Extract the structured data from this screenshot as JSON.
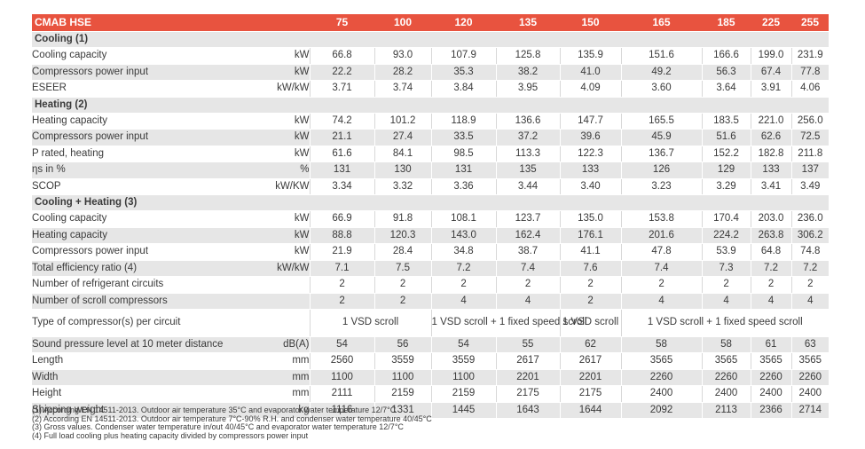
{
  "table": {
    "title": "CMAB HSE",
    "models": [
      "75",
      "100",
      "120",
      "135",
      "150",
      "165",
      "185",
      "225",
      "255"
    ],
    "sections": {
      "cooling": "Cooling (1)",
      "heating": "Heating (2)",
      "combined": "Cooling + Heating (3)"
    },
    "cooling_rows": [
      {
        "label": "Cooling capacity",
        "unit": "kW",
        "values": [
          "66.8",
          "93.0",
          "107.9",
          "125.8",
          "135.9",
          "151.6",
          "166.6",
          "199.0",
          "231.9"
        ]
      },
      {
        "label": "Compressors power input",
        "unit": "kW",
        "values": [
          "22.2",
          "28.2",
          "35.3",
          "38.2",
          "41.0",
          "49.2",
          "56.3",
          "67.4",
          "77.8"
        ]
      },
      {
        "label": "ESEER",
        "unit": "kW/kW",
        "values": [
          "3.71",
          "3.74",
          "3.84",
          "3.95",
          "4.09",
          "3.60",
          "3.64",
          "3.91",
          "4.06"
        ]
      }
    ],
    "heating_rows": [
      {
        "label": "Heating capacity",
        "unit": "kW",
        "values": [
          "74.2",
          "101.2",
          "118.9",
          "136.6",
          "147.7",
          "165.5",
          "183.5",
          "221.0",
          "256.0"
        ]
      },
      {
        "label": "Compressors power input",
        "unit": "kW",
        "values": [
          "21.1",
          "27.4",
          "33.5",
          "37.2",
          "39.6",
          "45.9",
          "51.6",
          "62.6",
          "72.5"
        ]
      },
      {
        "label": "P rated, heating",
        "unit": "kW",
        "values": [
          "61.6",
          "84.1",
          "98.5",
          "113.3",
          "122.3",
          "136.7",
          "152.2",
          "182.8",
          "211.8"
        ]
      },
      {
        "label": "ηs in %",
        "unit": "%",
        "values": [
          "131",
          "130",
          "131",
          "135",
          "133",
          "126",
          "129",
          "133",
          "137"
        ]
      },
      {
        "label": "SCOP",
        "unit": "kW/KW",
        "values": [
          "3.34",
          "3.32",
          "3.36",
          "3.44",
          "3.40",
          "3.23",
          "3.29",
          "3.41",
          "3.49"
        ]
      }
    ],
    "combined_rows": [
      {
        "label": "Cooling capacity",
        "unit": "kW",
        "values": [
          "66.9",
          "91.8",
          "108.1",
          "123.7",
          "135.0",
          "153.8",
          "170.4",
          "203.0",
          "236.0"
        ]
      },
      {
        "label": "Heating capacity",
        "unit": "kW",
        "values": [
          "88.8",
          "120.3",
          "143.0",
          "162.4",
          "176.1",
          "201.6",
          "224.2",
          "263.8",
          "306.2"
        ]
      },
      {
        "label": "Compressors power input",
        "unit": "kW",
        "values": [
          "21.9",
          "28.4",
          "34.8",
          "38.7",
          "41.1",
          "47.8",
          "53.9",
          "64.8",
          "74.8"
        ]
      },
      {
        "label": "Total efficiency ratio (4)",
        "unit": "kW/kW",
        "values": [
          "7.1",
          "7.5",
          "7.2",
          "7.4",
          "7.6",
          "7.4",
          "7.3",
          "7.2",
          "7.2"
        ]
      },
      {
        "label": "Number of refrigerant circuits",
        "unit": "",
        "values": [
          "2",
          "2",
          "2",
          "2",
          "2",
          "2",
          "2",
          "2",
          "2"
        ]
      },
      {
        "label": "Number of scroll compressors",
        "unit": "",
        "values": [
          "2",
          "2",
          "4",
          "4",
          "2",
          "4",
          "4",
          "4",
          "4"
        ]
      }
    ],
    "compressor_type": {
      "label": "Type of compressor(s) per circuit",
      "group1": "1 VSD scroll",
      "group2": "1 VSD scroll + 1 fixed speed scroll",
      "group3": "1 VSD scroll",
      "group4": "1 VSD scroll + 1 fixed speed scroll"
    },
    "physical_rows": [
      {
        "label": "Sound pressure level at 10 meter distance",
        "unit": "dB(A)",
        "values": [
          "54",
          "56",
          "54",
          "55",
          "62",
          "58",
          "58",
          "61",
          "63"
        ]
      },
      {
        "label": "Length",
        "unit": "mm",
        "values": [
          "2560",
          "3559",
          "3559",
          "2617",
          "2617",
          "3565",
          "3565",
          "3565",
          "3565"
        ]
      },
      {
        "label": "Width",
        "unit": "mm",
        "values": [
          "1100",
          "1100",
          "1100",
          "2201",
          "2201",
          "2260",
          "2260",
          "2260",
          "2260"
        ]
      },
      {
        "label": "Height",
        "unit": "mm",
        "values": [
          "2111",
          "2159",
          "2159",
          "2175",
          "2175",
          "2400",
          "2400",
          "2400",
          "2400"
        ]
      },
      {
        "label": "Shipping weight",
        "unit": "kg",
        "values": [
          "1116",
          "1331",
          "1445",
          "1643",
          "1644",
          "2092",
          "2113",
          "2366",
          "2714"
        ]
      }
    ]
  },
  "footnotes": [
    "(1) According EN 14511-2013. Outdoor air temperature 35°C and evaporator water temperature 12/7°C",
    "(2) According EN 14511-2013. Outdoor air temperature 7°C-90% R.H. and condenser water temperature 40/45°C",
    "(3) Gross values. Condenser water temperature in/out 40/45°C and evaporator water temperature 12/7°C",
    "(4) Full load cooling plus heating capacity divided by compressors power input"
  ],
  "colors": {
    "header": "#e8533f",
    "band": "#e6e6e6",
    "text": "#3a3a3a"
  }
}
